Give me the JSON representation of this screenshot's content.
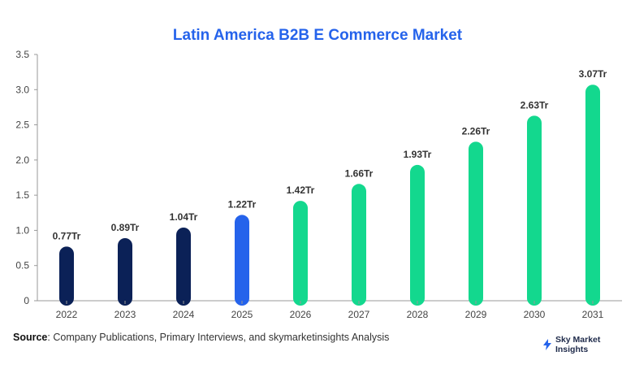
{
  "chart_data": {
    "type": "bar",
    "title": "Latin America B2B E Commerce Market",
    "categories": [
      "2022",
      "2023",
      "2024",
      "2025",
      "2026",
      "2027",
      "2028",
      "2029",
      "2030",
      "2031"
    ],
    "values": [
      0.77,
      0.89,
      1.04,
      1.22,
      1.42,
      1.66,
      1.93,
      2.26,
      2.63,
      3.07
    ],
    "data_labels": [
      "0.77Tr",
      "0.89Tr",
      "1.04Tr",
      "1.22Tr",
      "1.42Tr",
      "1.66Tr",
      "1.93Tr",
      "2.26Tr",
      "2.63Tr",
      "3.07Tr"
    ],
    "ylim": [
      0,
      3.5
    ],
    "yticks": [
      0,
      0.5,
      1.0,
      1.5,
      2.0,
      2.5,
      3.0,
      3.5
    ],
    "ytick_labels": [
      "0",
      "0.5",
      "1.0",
      "1.5",
      "2.0",
      "2.5",
      "3.0",
      "3.5"
    ],
    "bar_colors": [
      "#0b2157",
      "#0b2157",
      "#0b2157",
      "#2563eb",
      "#13d88e",
      "#13d88e",
      "#13d88e",
      "#13d88e",
      "#13d88e",
      "#13d88e"
    ],
    "grid": false,
    "legend": "none"
  },
  "source": {
    "label": "Source",
    "text": ": Company Publications, Primary Interviews, and skymarketinsights Analysis"
  },
  "brand": {
    "name": "Sky Market Insights",
    "icon": "lightning-bolt-icon",
    "accent": "#2563eb"
  },
  "colors": {
    "title": "#2563eb",
    "axis": "#999999"
  }
}
